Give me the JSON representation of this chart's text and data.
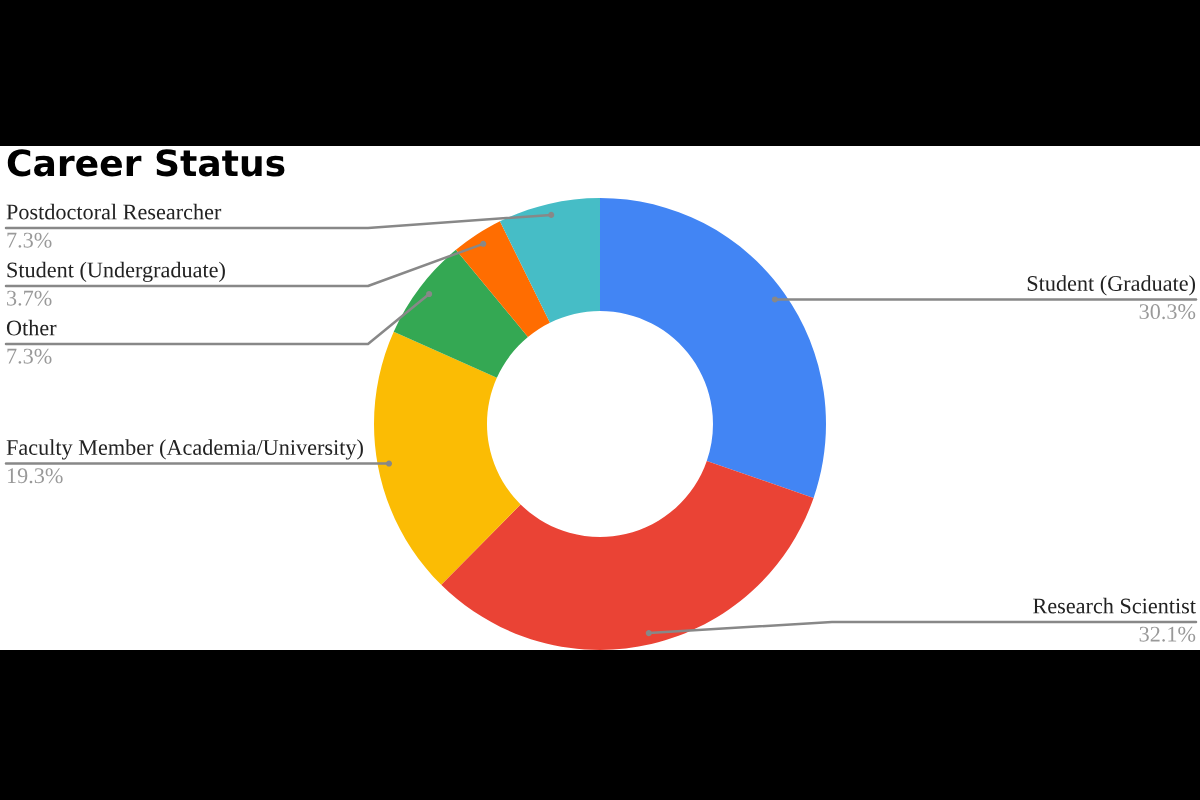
{
  "chart_data": {
    "type": "donut",
    "title": "Career Status",
    "categories": [
      "Student (Graduate)",
      "Research Scientist",
      "Faculty Member (Academia/University)",
      "Other",
      "Student (Undergraduate)",
      "Postdoctoral Researcher"
    ],
    "values": [
      30.3,
      32.1,
      19.3,
      7.3,
      3.7,
      7.3
    ],
    "colors": [
      "#4285f4",
      "#ea4335",
      "#fbbc04",
      "#34a853",
      "#ff6d01",
      "#46bdc6"
    ],
    "value_labels": [
      "30.3%",
      "32.1%",
      "19.3%",
      "7.3%",
      "3.7%",
      "7.3%"
    ]
  }
}
